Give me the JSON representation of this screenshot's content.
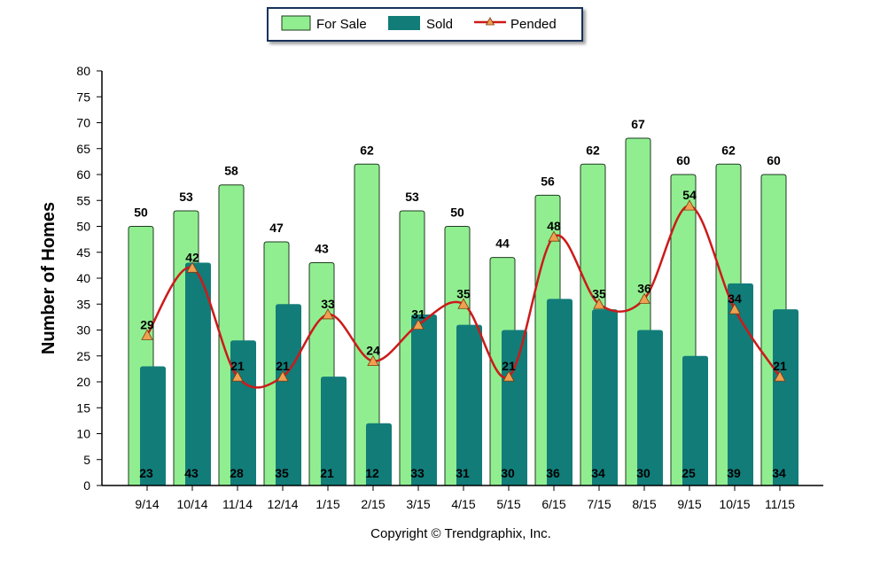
{
  "chart_data": {
    "type": "bar",
    "categories": [
      "9/14",
      "10/14",
      "11/14",
      "12/14",
      "1/15",
      "2/15",
      "3/15",
      "4/15",
      "5/15",
      "6/15",
      "7/15",
      "8/15",
      "9/15",
      "10/15",
      "11/15"
    ],
    "series": [
      {
        "name": "For Sale",
        "kind": "bar",
        "color": "#90ee90",
        "values": [
          50,
          53,
          58,
          47,
          43,
          62,
          53,
          50,
          44,
          56,
          62,
          67,
          60,
          62,
          60
        ]
      },
      {
        "name": "Sold",
        "kind": "bar",
        "color": "#127c79",
        "values": [
          23,
          43,
          28,
          35,
          21,
          12,
          33,
          31,
          30,
          36,
          34,
          30,
          25,
          39,
          34
        ]
      },
      {
        "name": "Pended",
        "kind": "line",
        "color": "#cc1a1a",
        "marker_color": "#f0a050",
        "values": [
          29,
          42,
          21,
          21,
          33,
          24,
          31,
          35,
          21,
          48,
          35,
          36,
          54,
          34,
          21
        ]
      }
    ],
    "ylabel": "Number of Homes",
    "ylim": [
      0,
      80
    ],
    "ytick_step": 5,
    "legend_position": "top-center",
    "grid": false
  },
  "footer": {
    "copyright": "Copyright © Trendgraphix, Inc."
  }
}
